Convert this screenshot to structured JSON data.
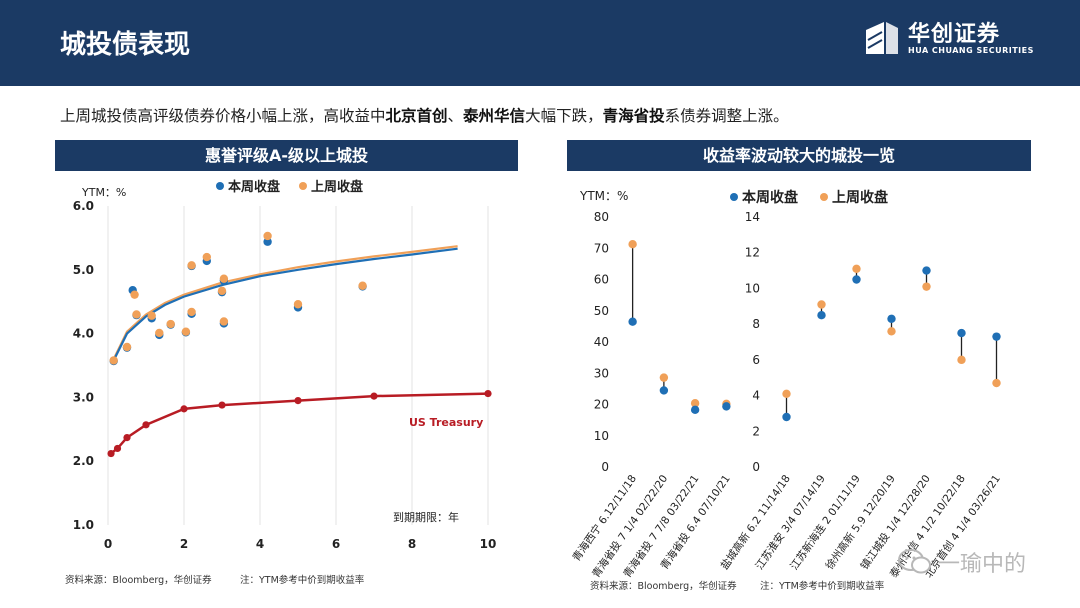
{
  "header": {
    "title": "城投债表现"
  },
  "logo": {
    "cn": "华创证券",
    "en": "HUA CHUANG SECURITIES"
  },
  "summary": {
    "p1": "上周城投债高评级债券价格小幅上涨，高收益中",
    "b1": "北京首创",
    "p2": "、",
    "b2": "泰州华信",
    "p3": "大幅下跌，",
    "b3": "青海省投",
    "p4": "系债券调整上涨。"
  },
  "left_panel": {
    "title": "惠誉评级A-级以上城投"
  },
  "right_panel": {
    "title": "收益率波动较大的城投一览"
  },
  "colors": {
    "this_week": "#1f6fb5",
    "last_week": "#f0a058",
    "treasury": "#b81c24",
    "header_bg": "#1b3a64"
  },
  "footnotes": {
    "left_source": "资料来源：Bloomberg，华创证券",
    "left_note": "注：YTM参考中价到期收益率",
    "right_source": "资料来源：Bloomberg，华创证券",
    "right_note": "注：YTM参考中价到期收益率"
  },
  "watermark": {
    "text": "一瑜中的"
  },
  "chart_data": [
    {
      "type": "scatter",
      "title": "惠誉评级A-级以上城投",
      "ylabel": "YTM：%",
      "xlabel": "到期期限：年",
      "xlim": [
        0,
        10
      ],
      "ylim": [
        1.0,
        6.0
      ],
      "xticks": [
        0,
        2,
        4,
        6,
        8,
        10
      ],
      "yticks": [
        "1.0",
        "2.0",
        "3.0",
        "4.0",
        "5.0",
        "6.0"
      ],
      "grid": "vertical",
      "legend": [
        "本周收盘",
        "上周收盘"
      ],
      "annotation": "US Treasury",
      "series": [
        {
          "name": "本周收盘",
          "points": [
            [
              0.15,
              3.57
            ],
            [
              0.5,
              3.78
            ],
            [
              0.65,
              4.68
            ],
            [
              0.75,
              4.29
            ],
            [
              1.15,
              4.24
            ],
            [
              1.35,
              3.98
            ],
            [
              1.65,
              4.14
            ],
            [
              2.05,
              4.02
            ],
            [
              2.2,
              5.06
            ],
            [
              2.2,
              4.31
            ],
            [
              2.6,
              5.14
            ],
            [
              3.0,
              4.65
            ],
            [
              3.05,
              4.16
            ],
            [
              3.05,
              4.83
            ],
            [
              4.2,
              5.44
            ],
            [
              5.0,
              4.41
            ],
            [
              6.7,
              4.74
            ]
          ]
        },
        {
          "name": "上周收盘",
          "points": [
            [
              0.15,
              3.58
            ],
            [
              0.5,
              3.79
            ],
            [
              0.7,
              4.61
            ],
            [
              0.75,
              4.3
            ],
            [
              1.15,
              4.28
            ],
            [
              1.35,
              4.01
            ],
            [
              1.65,
              4.15
            ],
            [
              2.05,
              4.03
            ],
            [
              2.2,
              5.07
            ],
            [
              2.2,
              4.34
            ],
            [
              2.6,
              5.2
            ],
            [
              3.0,
              4.67
            ],
            [
              3.05,
              4.19
            ],
            [
              3.05,
              4.86
            ],
            [
              4.2,
              5.53
            ],
            [
              5.0,
              4.46
            ],
            [
              6.7,
              4.75
            ]
          ]
        },
        {
          "name": "本周拟合",
          "type": "curve",
          "points": [
            [
              0.15,
              3.58
            ],
            [
              0.5,
              4.0
            ],
            [
              1,
              4.27
            ],
            [
              1.5,
              4.45
            ],
            [
              2,
              4.58
            ],
            [
              3,
              4.76
            ],
            [
              4,
              4.9
            ],
            [
              5,
              5.0
            ],
            [
              6,
              5.09
            ],
            [
              7,
              5.17
            ],
            [
              8,
              5.24
            ],
            [
              9.2,
              5.33
            ]
          ]
        },
        {
          "name": "上周拟合",
          "type": "curve",
          "points": [
            [
              0.15,
              3.6
            ],
            [
              0.5,
              4.03
            ],
            [
              1,
              4.3
            ],
            [
              1.5,
              4.48
            ],
            [
              2,
              4.61
            ],
            [
              3,
              4.8
            ],
            [
              4,
              4.93
            ],
            [
              5,
              5.04
            ],
            [
              6,
              5.13
            ],
            [
              7,
              5.21
            ],
            [
              8,
              5.28
            ],
            [
              9.2,
              5.37
            ]
          ]
        },
        {
          "name": "US Treasury",
          "type": "line",
          "points": [
            [
              0.08,
              2.12
            ],
            [
              0.25,
              2.2
            ],
            [
              0.5,
              2.37
            ],
            [
              1,
              2.57
            ],
            [
              2,
              2.82
            ],
            [
              3,
              2.88
            ],
            [
              5,
              2.95
            ],
            [
              7,
              3.02
            ],
            [
              10,
              3.06
            ]
          ]
        }
      ]
    },
    {
      "type": "scatter",
      "title": "收益率波动较大的城投一览",
      "ylabel": "YTM：%",
      "legend": [
        "本周收盘",
        "上周收盘"
      ],
      "panels": [
        {
          "ylim": [
            0,
            80
          ],
          "yticks": [
            "0",
            "10",
            "20",
            "30",
            "40",
            "50",
            "60",
            "70",
            "80"
          ],
          "categories": [
            "青海西宁 6.12/11/18",
            "青海省投 7 1/4 02/22/20",
            "青海省投 7 7/8 03/22/21",
            "青海省投 6.4 07/10/21"
          ],
          "series": [
            {
              "name": "本周收盘",
              "values": [
                46.5,
                24.5,
                18.3,
                19.4
              ]
            },
            {
              "name": "上周收盘",
              "values": [
                71.3,
                28.6,
                20.4,
                20.2
              ]
            }
          ]
        },
        {
          "ylim": [
            0,
            14
          ],
          "yticks": [
            "0",
            "2",
            "4",
            "6",
            "8",
            "10",
            "12",
            "14"
          ],
          "categories": [
            "盐城高新 6.2 11/14/18",
            "江苏淮安 3/4 07/14/19",
            "江苏新海连 2 01/11/19",
            "徐州高新 5.9 12/20/19",
            "镇江城投 1/4 12/28/20",
            "泰州华信 4 1/2 10/22/18",
            "北京首创 4 1/4 03/26/21"
          ],
          "series": [
            {
              "name": "本周收盘",
              "values": [
                2.8,
                8.5,
                10.5,
                8.3,
                11.0,
                7.5,
                7.3
              ]
            },
            {
              "name": "上周收盘",
              "values": [
                4.1,
                9.1,
                11.1,
                7.6,
                10.1,
                6.0,
                4.7
              ]
            }
          ]
        }
      ]
    }
  ]
}
